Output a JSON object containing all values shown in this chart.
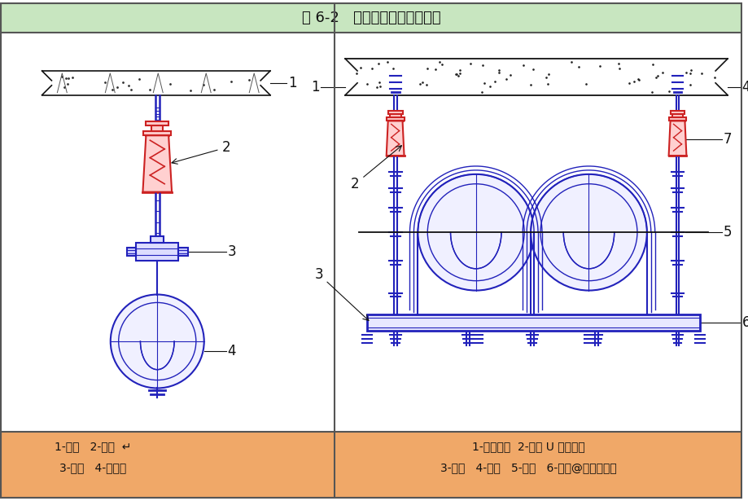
{
  "title": "图 6-2   水平管道的减震�架。",
  "title_bg": "#c8e6c0",
  "main_bg": "#ffffff",
  "footer_bg": "#f0a868",
  "border_color": "#444444",
  "blue": "#2222bb",
  "red": "#cc2222",
  "black": "#111111",
  "gray": "#888888",
  "footer_left_line1": "1-楼板   2-弹簧  ↵",
  "footer_left_line2": "3-吊架   4-管道。",
  "footer_right_line1": "1-膨胀螺栓  2-镀锌 U 型螺杆。",
  "footer_right_line2": "3-槽钢   4-楼板   5-吊杆   6-头条@建筑界一哥",
  "fig_width": 9.2,
  "fig_height": 6.15,
  "dpi": 100
}
